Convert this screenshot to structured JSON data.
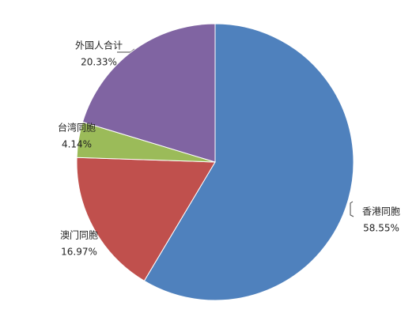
{
  "chart_data": {
    "type": "pie",
    "categories": [
      "香港同胞",
      "澳门同胞",
      "台湾同胞",
      "外国人合计"
    ],
    "values": [
      58.55,
      16.97,
      4.14,
      20.33
    ],
    "value_labels": [
      "58.55%",
      "16.97%",
      "4.14%",
      "20.33%"
    ],
    "colors": [
      "#4f81bd",
      "#c0504d",
      "#9bbb59",
      "#8064a2"
    ]
  }
}
